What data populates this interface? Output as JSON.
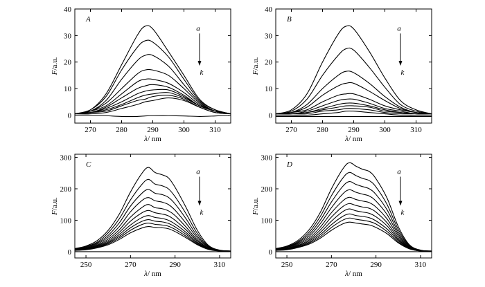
{
  "chart_data": [
    {
      "type": "line",
      "panel_label": "A",
      "xlabel_symbol": "λ",
      "xlabel_unit": "/ nm",
      "ylabel_symbol": "F",
      "ylabel_unit": "/a.u.",
      "xlim": [
        265,
        315
      ],
      "ylim": [
        -3,
        40
      ],
      "xticks": [
        270,
        280,
        290,
        300,
        310
      ],
      "yticks": [
        0,
        10,
        20,
        30,
        40
      ],
      "arrow_top": "a",
      "arrow_bottom": "k",
      "x": [
        265,
        270,
        275,
        280,
        285,
        287.5,
        290,
        295,
        300,
        305,
        310,
        315
      ],
      "series": [
        {
          "values": [
            0.5,
            2,
            8,
            19,
            30,
            33.5,
            32.5,
            24,
            15,
            6,
            2,
            0.5
          ]
        },
        {
          "values": [
            0.5,
            2,
            7,
            17,
            25.5,
            28,
            27.5,
            22,
            13.5,
            5.5,
            2,
            0.5
          ]
        },
        {
          "values": [
            0.5,
            1.5,
            5.5,
            13.5,
            20.5,
            22.5,
            22.5,
            18.5,
            11.5,
            5,
            1.5,
            0.5
          ]
        },
        {
          "values": [
            0.5,
            1.5,
            4.5,
            10,
            15.5,
            17,
            17,
            15,
            10,
            4.5,
            1.5,
            0.5
          ]
        },
        {
          "values": [
            0.5,
            1.5,
            3.5,
            8,
            12.5,
            13.5,
            13.5,
            12,
            8.5,
            4,
            1.5,
            0.5
          ]
        },
        {
          "values": [
            0.5,
            1,
            3,
            6.5,
            10,
            11,
            11.5,
            10.5,
            7.5,
            3.5,
            1.5,
            0.5
          ]
        },
        {
          "values": [
            0.5,
            1,
            2.5,
            5,
            8,
            9,
            9.5,
            9.5,
            7,
            3.5,
            1.5,
            0.5
          ]
        },
        {
          "values": [
            0.5,
            1,
            2,
            4,
            6.5,
            7.5,
            8,
            8.5,
            6.5,
            3.5,
            1.5,
            0.5
          ]
        },
        {
          "values": [
            0.5,
            1,
            1.5,
            3.5,
            5.5,
            6,
            7,
            7.5,
            6,
            3,
            1,
            0.5
          ]
        },
        {
          "values": [
            0.5,
            0.5,
            1,
            2.5,
            4,
            5,
            5.5,
            6.5,
            5.5,
            3,
            1,
            0.5
          ]
        },
        {
          "values": [
            0,
            0,
            -0.2,
            -0.5,
            -0.5,
            -0.3,
            -0.2,
            -0.2,
            -0.3,
            -0.5,
            -0.3,
            0
          ]
        }
      ]
    },
    {
      "type": "line",
      "panel_label": "B",
      "xlabel_symbol": "λ",
      "xlabel_unit": "/ nm",
      "ylabel_symbol": "F",
      "ylabel_unit": "/a.u.",
      "xlim": [
        265,
        315
      ],
      "ylim": [
        -3,
        40
      ],
      "xticks": [
        270,
        280,
        290,
        300,
        310
      ],
      "yticks": [
        0,
        10,
        20,
        30,
        40
      ],
      "arrow_top": "a",
      "arrow_bottom": "k",
      "x": [
        265,
        270,
        275,
        280,
        285,
        287.5,
        290,
        295,
        300,
        305,
        310,
        315
      ],
      "series": [
        {
          "values": [
            0.5,
            2,
            8,
            20,
            30.5,
            33.5,
            32.5,
            24,
            14,
            5.5,
            2,
            0.5
          ]
        },
        {
          "values": [
            0.5,
            1.5,
            6,
            15,
            22.5,
            25,
            24.5,
            18,
            10.5,
            4,
            1.5,
            0.5
          ]
        },
        {
          "values": [
            0.5,
            1,
            4,
            10,
            15,
            16.5,
            16,
            12,
            7,
            3,
            1,
            0.5
          ]
        },
        {
          "values": [
            0.5,
            1,
            3,
            7.5,
            11,
            12,
            12,
            9,
            5.5,
            2.5,
            1,
            0.5
          ]
        },
        {
          "values": [
            0.5,
            1,
            2,
            5,
            7.5,
            8,
            8,
            6,
            3.5,
            2,
            1,
            0.5
          ]
        },
        {
          "values": [
            0.5,
            0.5,
            1.5,
            3.5,
            5.5,
            6,
            6,
            4.5,
            2.5,
            1.5,
            0.5,
            0.5
          ]
        },
        {
          "values": [
            0.5,
            0.5,
            1,
            2.5,
            4,
            4.5,
            4.5,
            3.5,
            2,
            1,
            0.5,
            0.5
          ]
        },
        {
          "values": [
            0.5,
            0.5,
            1,
            2,
            3,
            3.5,
            3.5,
            3,
            1.5,
            1,
            0.5,
            0.5
          ]
        },
        {
          "values": [
            0.5,
            0.5,
            0.5,
            1.5,
            2,
            2.5,
            2.5,
            2,
            1,
            0.5,
            0.5,
            0.5
          ]
        },
        {
          "values": [
            0,
            0,
            0,
            0.5,
            1,
            1.5,
            1.5,
            1,
            0.5,
            0,
            0,
            0
          ]
        },
        {
          "values": [
            -0.5,
            -0.5,
            -0.5,
            -0.5,
            -0.5,
            -0.5,
            -0.5,
            -0.5,
            -0.5,
            -0.5,
            -0.5,
            -0.5
          ]
        }
      ]
    },
    {
      "type": "line",
      "panel_label": "C",
      "xlabel_symbol": "λ",
      "xlabel_unit": "/ nm",
      "ylabel_symbol": "F",
      "ylabel_unit": "/a.u.",
      "xlim": [
        245,
        315
      ],
      "ylim": [
        -20,
        310
      ],
      "xticks": [
        250,
        270,
        290,
        310
      ],
      "yticks": [
        0,
        100,
        200,
        300
      ],
      "arrow_top": "a",
      "arrow_bottom": "k",
      "x": [
        245,
        250,
        255,
        260,
        265,
        270,
        275,
        278,
        281,
        284,
        287,
        290,
        295,
        300,
        305,
        310,
        315
      ],
      "series": [
        {
          "values": [
            10,
            18,
            35,
            68,
            120,
            190,
            248,
            268,
            252,
            245,
            235,
            205,
            140,
            68,
            20,
            5,
            2
          ]
        },
        {
          "values": [
            9,
            16,
            30,
            60,
            105,
            165,
            213,
            230,
            215,
            210,
            200,
            175,
            120,
            58,
            18,
            4,
            2
          ]
        },
        {
          "values": [
            8,
            14,
            27,
            52,
            92,
            145,
            185,
            198,
            186,
            182,
            173,
            152,
            104,
            50,
            16,
            4,
            2
          ]
        },
        {
          "values": [
            7,
            12,
            24,
            46,
            80,
            127,
            162,
            172,
            162,
            158,
            150,
            132,
            90,
            44,
            14,
            4,
            2
          ]
        },
        {
          "values": [
            6,
            11,
            21,
            40,
            70,
            110,
            140,
            150,
            140,
            137,
            130,
            115,
            78,
            38,
            12,
            3,
            2
          ]
        },
        {
          "values": [
            6,
            10,
            19,
            35,
            62,
            97,
            123,
            131,
            124,
            120,
            114,
            100,
            69,
            34,
            11,
            3,
            2
          ]
        },
        {
          "values": [
            5,
            9,
            17,
            31,
            55,
            85,
            108,
            115,
            109,
            106,
            100,
            88,
            61,
            30,
            10,
            3,
            2
          ]
        },
        {
          "values": [
            5,
            8,
            15,
            28,
            49,
            76,
            96,
            102,
            97,
            95,
            90,
            79,
            55,
            27,
            9,
            3,
            2
          ]
        },
        {
          "values": [
            4,
            7,
            13,
            25,
            44,
            68,
            86,
            91,
            87,
            85,
            81,
            71,
            49,
            24,
            8,
            2,
            1
          ]
        },
        {
          "values": [
            4,
            6,
            12,
            22,
            39,
            60,
            75,
            80,
            77,
            76,
            73,
            64,
            44,
            22,
            7,
            2,
            1
          ]
        },
        {
          "values": [
            0,
            0,
            0,
            0,
            0,
            0,
            0,
            0,
            0,
            0,
            0,
            0,
            0,
            0,
            0,
            0,
            0
          ]
        }
      ]
    },
    {
      "type": "line",
      "panel_label": "D",
      "xlabel_symbol": "λ",
      "xlabel_unit": "/ nm",
      "ylabel_symbol": "F",
      "ylabel_unit": "/a.u.",
      "xlim": [
        245,
        315
      ],
      "ylim": [
        -20,
        310
      ],
      "xticks": [
        250,
        270,
        290,
        310
      ],
      "yticks": [
        0,
        100,
        200,
        300
      ],
      "arrow_top": "a",
      "arrow_bottom": "k",
      "x": [
        245,
        250,
        255,
        260,
        265,
        270,
        275,
        278,
        281,
        284,
        287,
        290,
        295,
        300,
        305,
        310,
        315
      ],
      "series": [
        {
          "values": [
            10,
            18,
            36,
            70,
            125,
            200,
            262,
            283,
            272,
            262,
            255,
            232,
            170,
            80,
            22,
            5,
            2
          ]
        },
        {
          "values": [
            9,
            16,
            32,
            62,
            112,
            178,
            233,
            252,
            242,
            233,
            226,
            206,
            150,
            71,
            20,
            4,
            2
          ]
        },
        {
          "values": [
            8,
            14,
            29,
            55,
            100,
            158,
            207,
            223,
            214,
            207,
            200,
            182,
            133,
            63,
            18,
            4,
            2
          ]
        },
        {
          "values": [
            7,
            13,
            26,
            49,
            89,
            140,
            183,
            197,
            189,
            183,
            177,
            161,
            118,
            56,
            16,
            4,
            2
          ]
        },
        {
          "values": [
            6,
            11,
            23,
            43,
            78,
            124,
            161,
            173,
            166,
            161,
            156,
            142,
            104,
            50,
            14,
            3,
            2
          ]
        },
        {
          "values": [
            6,
            10,
            20,
            38,
            69,
            110,
            143,
            153,
            147,
            142,
            138,
            126,
            92,
            44,
            13,
            3,
            2
          ]
        },
        {
          "values": [
            5,
            9,
            18,
            34,
            61,
            97,
            127,
            136,
            130,
            126,
            122,
            111,
            82,
            39,
            12,
            3,
            2
          ]
        },
        {
          "values": [
            5,
            8,
            16,
            30,
            54,
            86,
            112,
            120,
            115,
            112,
            108,
            98,
            72,
            35,
            11,
            3,
            2
          ]
        },
        {
          "values": [
            4,
            7,
            14,
            27,
            48,
            77,
            100,
            107,
            103,
            100,
            96,
            88,
            64,
            31,
            10,
            2,
            1
          ]
        },
        {
          "values": [
            4,
            6,
            13,
            24,
            43,
            68,
            88,
            94,
            91,
            88,
            85,
            77,
            57,
            28,
            9,
            2,
            1
          ]
        },
        {
          "values": [
            0,
            0,
            0,
            0,
            0,
            0,
            0,
            0,
            0,
            0,
            0,
            0,
            0,
            0,
            0,
            0,
            0
          ]
        }
      ]
    }
  ]
}
